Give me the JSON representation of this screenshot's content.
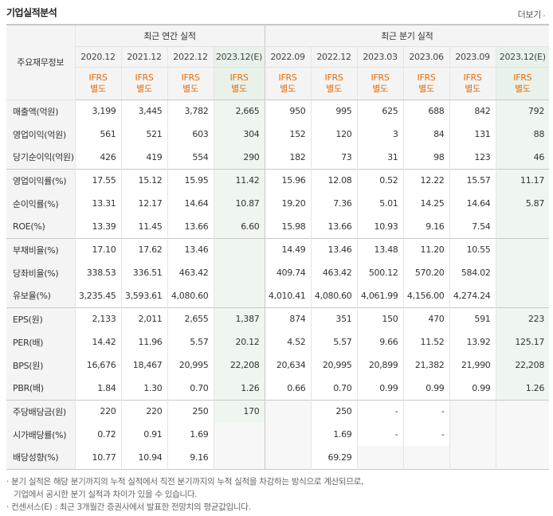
{
  "header": {
    "title": "기업실적분석",
    "more_label": "더보기",
    "more_arrow": "›"
  },
  "table": {
    "corner_label": "주요재무정보",
    "groups": {
      "annual": "최근 연간 실적",
      "quarterly": "최근 분기 실적"
    },
    "periods": [
      "2020.12",
      "2021.12",
      "2022.12",
      "2023.12(E)",
      "2022.09",
      "2022.12",
      "2023.03",
      "2023.06",
      "2023.09",
      "2023.12(E)"
    ],
    "ifrs_line1": "IFRS",
    "ifrs_line2": "별도",
    "rows": [
      {
        "label": "매출액(억원)",
        "values": [
          "3,199",
          "3,445",
          "3,782",
          "2,665",
          "950",
          "995",
          "625",
          "688",
          "842",
          "792"
        ]
      },
      {
        "label": "영업이익(억원)",
        "values": [
          "561",
          "521",
          "603",
          "304",
          "152",
          "120",
          "3",
          "84",
          "131",
          "88"
        ]
      },
      {
        "label": "당기순이익(억원)",
        "values": [
          "426",
          "419",
          "554",
          "290",
          "182",
          "73",
          "31",
          "98",
          "123",
          "46"
        ]
      },
      {
        "label": "영업이익률(%)",
        "values": [
          "17.55",
          "15.12",
          "15.95",
          "11.42",
          "15.96",
          "12.08",
          "0.52",
          "12.22",
          "15.57",
          "11.17"
        ]
      },
      {
        "label": "순이익률(%)",
        "values": [
          "13.31",
          "12.17",
          "14.64",
          "10.87",
          "19.20",
          "7.36",
          "5.01",
          "14.25",
          "14.64",
          "5.87"
        ]
      },
      {
        "label": "ROE(%)",
        "values": [
          "13.39",
          "11.45",
          "13.66",
          "6.60",
          "15.98",
          "13.66",
          "10.93",
          "9.16",
          "7.54",
          ""
        ]
      },
      {
        "label": "부채비율(%)",
        "values": [
          "17.10",
          "17.62",
          "13.46",
          "",
          "14.49",
          "13.46",
          "13.48",
          "11.20",
          "10.55",
          ""
        ]
      },
      {
        "label": "당좌비율(%)",
        "values": [
          "338.53",
          "336.51",
          "463.42",
          "",
          "409.74",
          "463.42",
          "500.12",
          "570.20",
          "584.02",
          ""
        ]
      },
      {
        "label": "유보율(%)",
        "values": [
          "3,235.45",
          "3,593.61",
          "4,080.60",
          "",
          "4,010.41",
          "4,080.60",
          "4,061.99",
          "4,156.00",
          "4,274.24",
          ""
        ]
      },
      {
        "label": "EPS(원)",
        "values": [
          "2,133",
          "2,011",
          "2,655",
          "1,387",
          "874",
          "351",
          "150",
          "470",
          "591",
          "223"
        ]
      },
      {
        "label": "PER(배)",
        "values": [
          "14.42",
          "11.96",
          "5.57",
          "20.12",
          "4.52",
          "5.57",
          "9.66",
          "11.52",
          "13.92",
          "125.17"
        ]
      },
      {
        "label": "BPS(원)",
        "values": [
          "16,676",
          "18,467",
          "20,995",
          "22,208",
          "20,634",
          "20,995",
          "20,899",
          "21,382",
          "21,990",
          "22,208"
        ]
      },
      {
        "label": "PBR(배)",
        "values": [
          "1.84",
          "1.30",
          "0.70",
          "1.26",
          "0.66",
          "0.70",
          "0.99",
          "0.99",
          "0.99",
          "1.26"
        ]
      },
      {
        "label": "주당배당금(원)",
        "values": [
          "220",
          "220",
          "250",
          "170",
          "",
          "250",
          "-",
          "-",
          "",
          ""
        ]
      },
      {
        "label": "시가배당률(%)",
        "values": [
          "0.72",
          "0.91",
          "1.69",
          "",
          "",
          "1.69",
          "-",
          "-",
          "",
          ""
        ]
      },
      {
        "label": "배당성향(%)",
        "values": [
          "10.77",
          "10.94",
          "9.16",
          "",
          "",
          "69.29",
          "",
          "",
          "",
          ""
        ]
      }
    ]
  },
  "notes": {
    "line1": "· 분기 실적은 해당 분기까지의 누적 실적에서 직전 분기까지의 누적 실적을 차감하는 방식으로 계산되므로,",
    "line2": "기업에서 공시한 분기 실적과 차이가 있을 수 있습니다.",
    "line3": "· 컨센서스(E) : 최근 3개월간 증권사에서 발표한 전망치의 평균값입니다."
  }
}
